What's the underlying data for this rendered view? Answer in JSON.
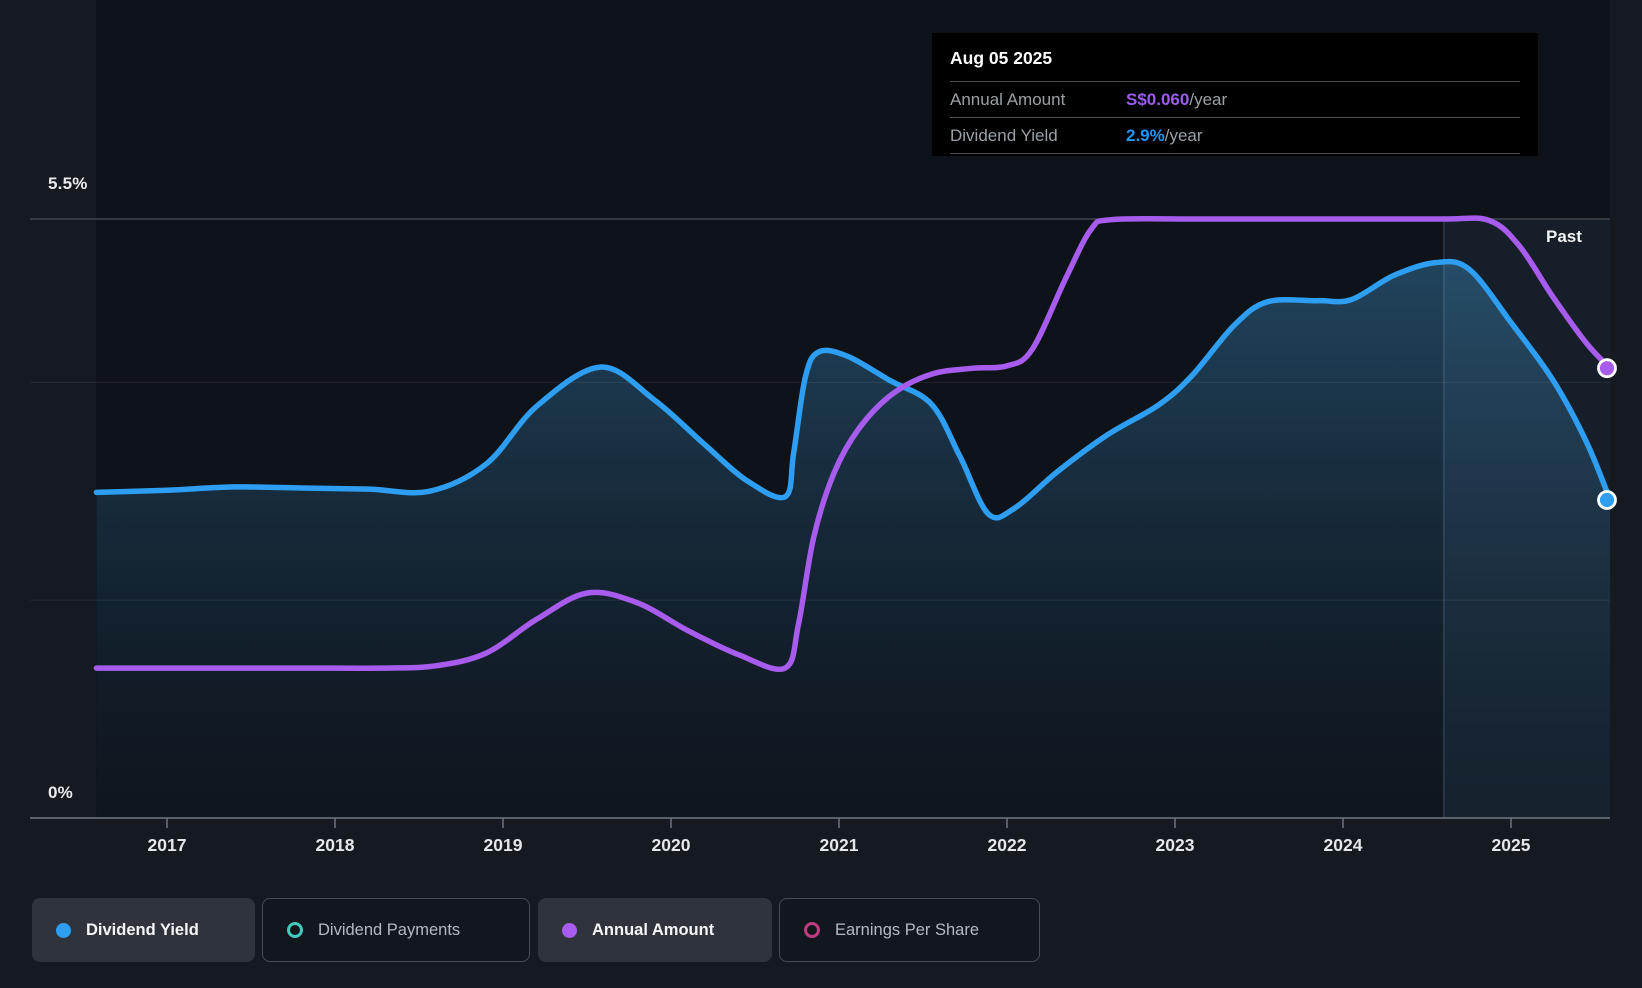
{
  "tooltip": {
    "date": "Aug 05 2025",
    "rows": [
      {
        "label": "Annual Amount",
        "value": "S$0.060",
        "suffix": "/year",
        "color": "#9b5cf0"
      },
      {
        "label": "Dividend Yield",
        "value": "2.9%",
        "suffix": "/year",
        "color": "#2196f3"
      }
    ]
  },
  "chart": {
    "y_top_label": "5.5%",
    "y_bottom_label": "0%",
    "past_label": "Past"
  },
  "legend": {
    "items": [
      {
        "label": "Dividend Yield",
        "marker": "dot",
        "color": "#2d9ef2",
        "active": true
      },
      {
        "label": "Dividend Payments",
        "marker": "ring",
        "color": "#43c8ba",
        "active": false
      },
      {
        "label": "Annual Amount",
        "marker": "dot",
        "color": "#a85ced",
        "active": true
      },
      {
        "label": "Earnings Per Share",
        "marker": "ring",
        "color": "#bd3d7e",
        "active": false
      }
    ]
  },
  "chart_data": {
    "type": "line",
    "title": "Dividend history (yield and annual amount)",
    "x_ticks": [
      2017,
      2018,
      2019,
      2020,
      2021,
      2022,
      2023,
      2024,
      2025
    ],
    "x_range": [
      2016.58,
      2025.59
    ],
    "past_band_start": 2024.6,
    "y_gridlines_pct": [
      2,
      4
    ],
    "y_top_pct": 5.5,
    "legend_position": "bottom-left",
    "grid": true,
    "series": [
      {
        "name": "Dividend Yield",
        "unit": "%",
        "color": "#2d9ef2",
        "axis_range": [
          0,
          5.5
        ],
        "area": true,
        "end_marker": true,
        "current_value": "2.9%/year",
        "points": [
          [
            2016.58,
            2.99
          ],
          [
            2017.0,
            3.01
          ],
          [
            2017.4,
            3.04
          ],
          [
            2017.8,
            3.03
          ],
          [
            2018.2,
            3.02
          ],
          [
            2018.56,
            3.0
          ],
          [
            2018.9,
            3.25
          ],
          [
            2019.2,
            3.78
          ],
          [
            2019.58,
            4.14
          ],
          [
            2019.9,
            3.84
          ],
          [
            2020.2,
            3.43
          ],
          [
            2020.45,
            3.1
          ],
          [
            2020.68,
            2.95
          ],
          [
            2020.73,
            3.35
          ],
          [
            2020.8,
            4.05
          ],
          [
            2020.88,
            4.28
          ],
          [
            2021.05,
            4.24
          ],
          [
            2021.3,
            4.02
          ],
          [
            2021.55,
            3.8
          ],
          [
            2021.72,
            3.32
          ],
          [
            2021.89,
            2.79
          ],
          [
            2022.05,
            2.85
          ],
          [
            2022.3,
            3.18
          ],
          [
            2022.6,
            3.52
          ],
          [
            2022.9,
            3.79
          ],
          [
            2023.1,
            4.06
          ],
          [
            2023.35,
            4.52
          ],
          [
            2023.55,
            4.74
          ],
          [
            2023.85,
            4.75
          ],
          [
            2024.05,
            4.76
          ],
          [
            2024.3,
            4.98
          ],
          [
            2024.55,
            5.1
          ],
          [
            2024.75,
            5.04
          ],
          [
            2025.0,
            4.55
          ],
          [
            2025.25,
            4.02
          ],
          [
            2025.45,
            3.45
          ],
          [
            2025.59,
            2.92
          ]
        ]
      },
      {
        "name": "Annual Amount",
        "unit": "S$ per year",
        "color": "#a85ced",
        "axis_range": [
          0,
          0.0799
        ],
        "area": false,
        "end_marker": true,
        "current_value": "S$0.060/year",
        "points": [
          [
            2016.58,
            0.02
          ],
          [
            2017.2,
            0.02
          ],
          [
            2017.8,
            0.02
          ],
          [
            2018.3,
            0.02
          ],
          [
            2018.6,
            0.0203
          ],
          [
            2018.9,
            0.022
          ],
          [
            2019.2,
            0.0265
          ],
          [
            2019.5,
            0.03
          ],
          [
            2019.8,
            0.0287
          ],
          [
            2020.1,
            0.025
          ],
          [
            2020.4,
            0.0218
          ],
          [
            2020.68,
            0.02
          ],
          [
            2020.76,
            0.026
          ],
          [
            2020.85,
            0.0375
          ],
          [
            2020.97,
            0.046
          ],
          [
            2021.12,
            0.052
          ],
          [
            2021.32,
            0.0566
          ],
          [
            2021.55,
            0.0592
          ],
          [
            2021.8,
            0.06
          ],
          [
            2022.0,
            0.0603
          ],
          [
            2022.15,
            0.0625
          ],
          [
            2022.35,
            0.072
          ],
          [
            2022.5,
            0.0785
          ],
          [
            2022.62,
            0.0798
          ],
          [
            2023.1,
            0.0799
          ],
          [
            2023.6,
            0.0799
          ],
          [
            2024.1,
            0.0799
          ],
          [
            2024.6,
            0.0799
          ],
          [
            2024.87,
            0.0797
          ],
          [
            2025.05,
            0.0763
          ],
          [
            2025.25,
            0.0695
          ],
          [
            2025.45,
            0.0633
          ],
          [
            2025.59,
            0.06
          ]
        ]
      }
    ]
  }
}
